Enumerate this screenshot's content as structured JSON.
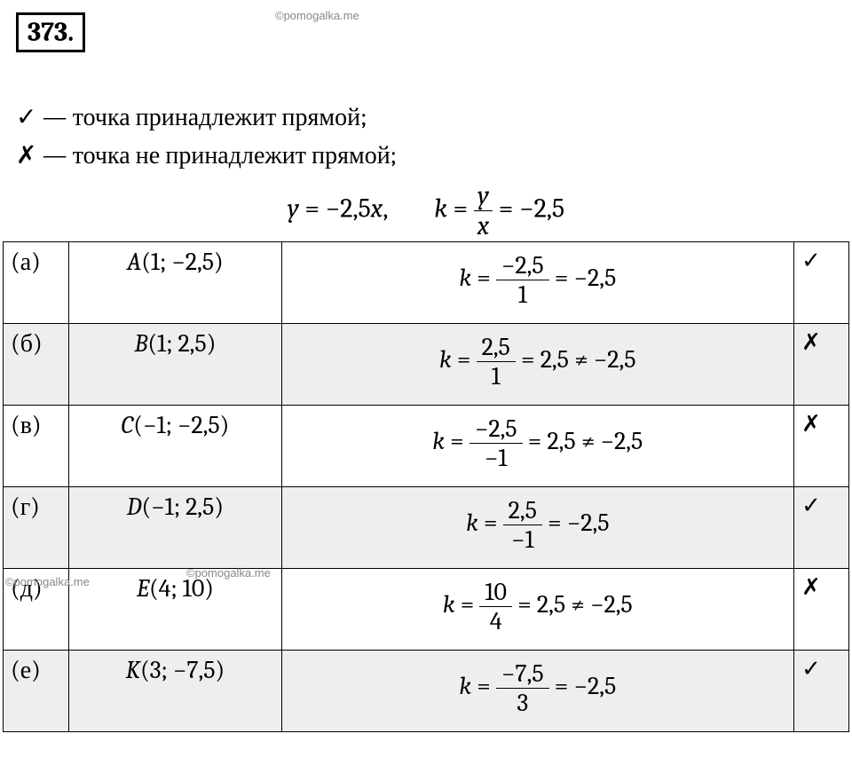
{
  "watermarks": {
    "top": "©pomogalka.me",
    "mid1": "©pomogalka.me",
    "mid2": "©pomogalka.me"
  },
  "task_number": "373.",
  "legend": {
    "check_symbol": "✓",
    "check_text": " — точка принадлежит прямой;",
    "cross_symbol": "✗",
    "cross_text": " — точка не принадлежит прямой;"
  },
  "formula": {
    "y": "y",
    "eq1": " = −2,5",
    "x": "x",
    "comma_space": ",        ",
    "k": "k",
    "eq": " = ",
    "frac_num": "y",
    "frac_den": "x",
    "tail": " = −2,5"
  },
  "rows": [
    {
      "letter": "(а)",
      "point_name": "A",
      "point_coord": "(1; −2,5)",
      "calc_num": "−2,5",
      "calc_den": "1",
      "calc_tail": " = −2,5",
      "result_symbol": "✓",
      "shaded": false
    },
    {
      "letter": "(б)",
      "point_name": "B",
      "point_coord": "(1; 2,5)",
      "calc_num": "2,5",
      "calc_den": "1",
      "calc_tail": " = 2,5 ≠ −2,5",
      "result_symbol": "✗",
      "shaded": true
    },
    {
      "letter": "(в)",
      "point_name": "C",
      "point_coord": "(−1; −2,5)",
      "calc_num": "−2,5",
      "calc_den": "−1",
      "calc_tail": " = 2,5 ≠ −2,5",
      "result_symbol": "✗",
      "shaded": false
    },
    {
      "letter": "(г)",
      "point_name": "D",
      "point_coord": "(−1; 2,5)",
      "calc_num": "2,5",
      "calc_den": "−1",
      "calc_tail": " = −2,5",
      "result_symbol": "✓",
      "shaded": true
    },
    {
      "letter": "(д)",
      "point_name": "E",
      "point_coord": "(4; 10)",
      "calc_num": "10",
      "calc_den": "4",
      "calc_tail": " = 2,5 ≠ −2,5",
      "result_symbol": "✗",
      "shaded": false
    },
    {
      "letter": "(е)",
      "point_name": "K",
      "point_coord": "(3; −7,5)",
      "calc_num": "−7,5",
      "calc_den": "3",
      "calc_tail": " = −2,5",
      "result_symbol": "✓",
      "shaded": true
    }
  ],
  "k_label": "k",
  "eq_label": " = "
}
